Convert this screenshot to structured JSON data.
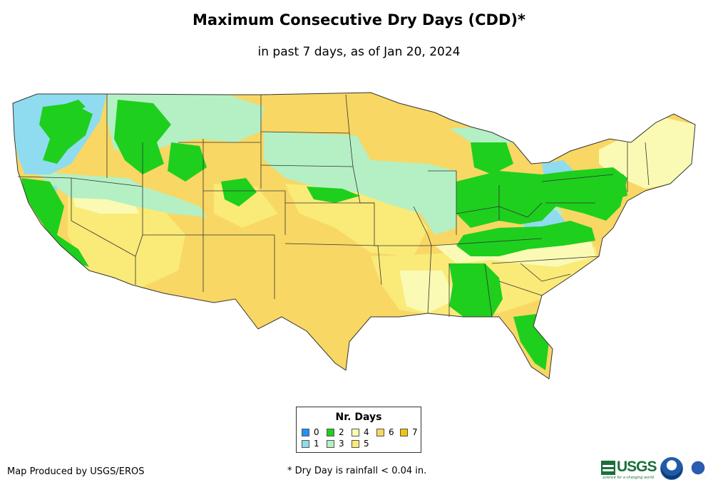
{
  "title": "Maximum Consecutive Dry Days (CDD)*",
  "subtitle": "in past 7 days, as of Jan 20, 2024",
  "legend": {
    "title": "Nr. Days",
    "items": [
      {
        "label": "0",
        "color": "#1e90ff"
      },
      {
        "label": "1",
        "color": "#8fdcf0"
      },
      {
        "label": "2",
        "color": "#1ecf1e"
      },
      {
        "label": "3",
        "color": "#b4f0c4"
      },
      {
        "label": "4",
        "color": "#fafab4"
      },
      {
        "label": "5",
        "color": "#faea78"
      },
      {
        "label": "6",
        "color": "#f8d764"
      },
      {
        "label": "7",
        "color": "#f5c30a"
      }
    ]
  },
  "credit": "Map Produced by USGS/EROS",
  "footnote": "* Dry Day is rainfall < 0.04 in.",
  "logos": {
    "usgs": "USGS",
    "usgs_tagline": "science for a changing world",
    "noaa": "NOAA",
    "nws": "National Weather Service"
  }
}
